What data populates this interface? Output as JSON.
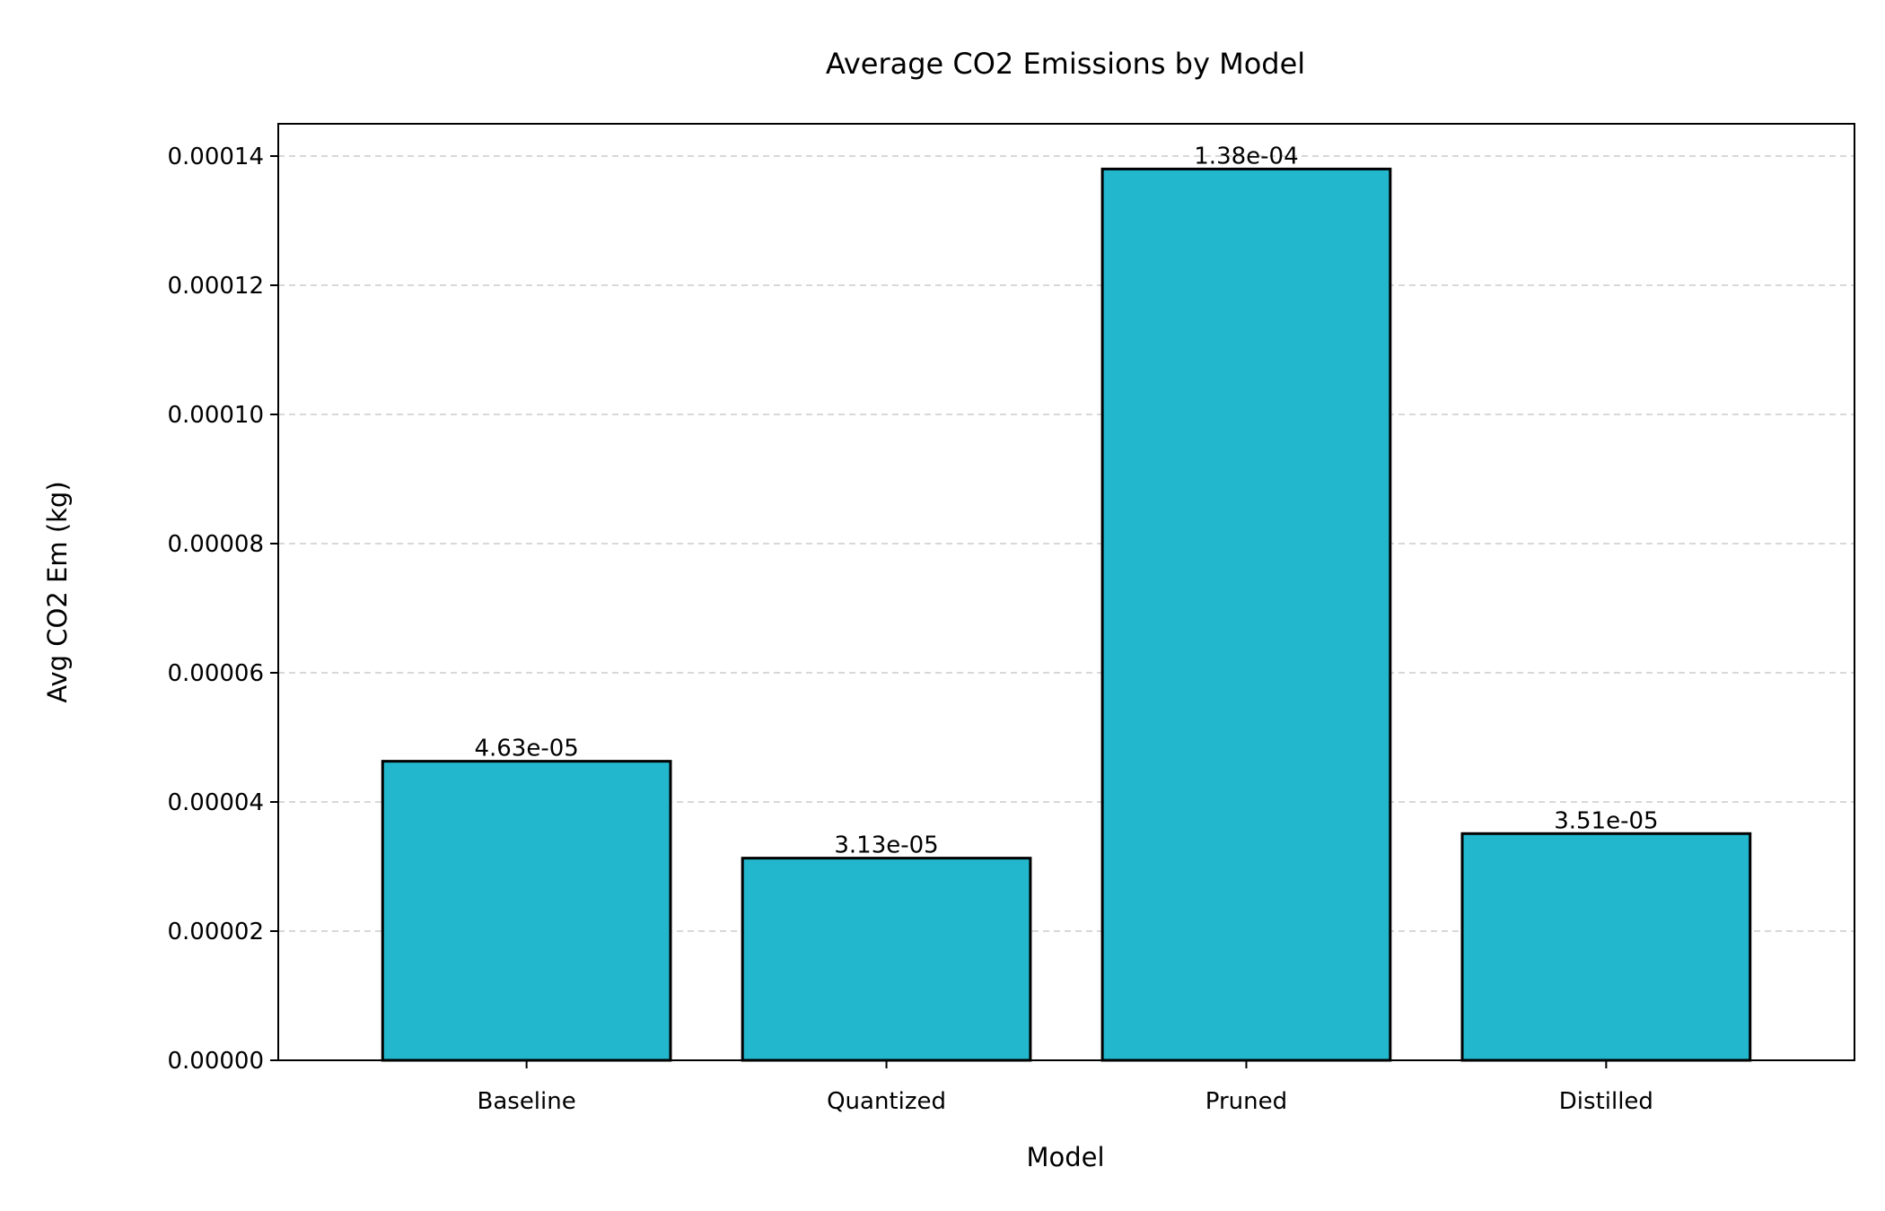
{
  "chart_data": {
    "type": "bar",
    "title": "Average CO2 Emissions by Model",
    "xlabel": "Model",
    "ylabel": "Avg CO2 Em (kg)",
    "categories": [
      "Baseline",
      "Quantized",
      "Pruned",
      "Distilled"
    ],
    "values": [
      4.63e-05,
      3.13e-05,
      0.000138,
      3.51e-05
    ],
    "data_labels": [
      "4.63e-05",
      "3.13e-05",
      "1.38e-04",
      "3.51e-05"
    ],
    "ylim": [
      0,
      0.000145
    ],
    "yticks": [
      0,
      2e-05,
      4e-05,
      6e-05,
      8e-05,
      0.0001,
      0.00012,
      0.00014
    ],
    "ytick_labels": [
      "0.00000",
      "0.00002",
      "0.00004",
      "0.00006",
      "0.00008",
      "0.00010",
      "0.00012",
      "0.00014"
    ],
    "grid": "y-dashed",
    "bar_color": "#22b7cc",
    "bar_edge_color": "#000000"
  }
}
